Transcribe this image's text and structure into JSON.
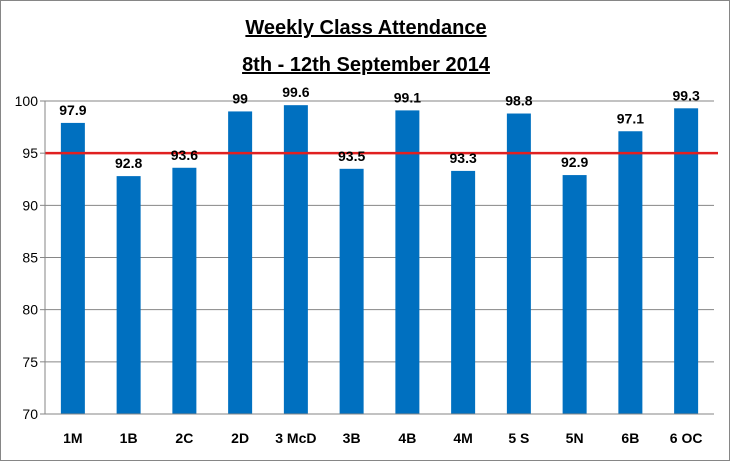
{
  "chart_data": {
    "type": "bar",
    "title": [
      "Weekly Class Attendance",
      "8th - 12th September 2014"
    ],
    "categories": [
      "1M",
      "1B",
      "2C",
      "2D",
      "3 McD",
      "3B",
      "4B",
      "4M",
      "5 S",
      "5N",
      "6B",
      "6 OC"
    ],
    "values": [
      97.9,
      92.8,
      93.6,
      99,
      99.6,
      93.5,
      99.1,
      93.3,
      98.8,
      92.9,
      97.1,
      99.3
    ],
    "data_labels": [
      "97.9",
      "92.8",
      "93.6",
      "99",
      "99.6",
      "93.5",
      "99.1",
      "93.3",
      "98.8",
      "92.9",
      "97.1",
      "99.3"
    ],
    "yticks": [
      "70",
      "75",
      "80",
      "85",
      "90",
      "95",
      "100"
    ],
    "ylim": [
      70,
      100
    ],
    "grid": true,
    "legend": "none",
    "reference_line": 95,
    "colors": {
      "bar": "#0070c0",
      "reference_line": "#e02020",
      "grid": "#868686"
    }
  }
}
